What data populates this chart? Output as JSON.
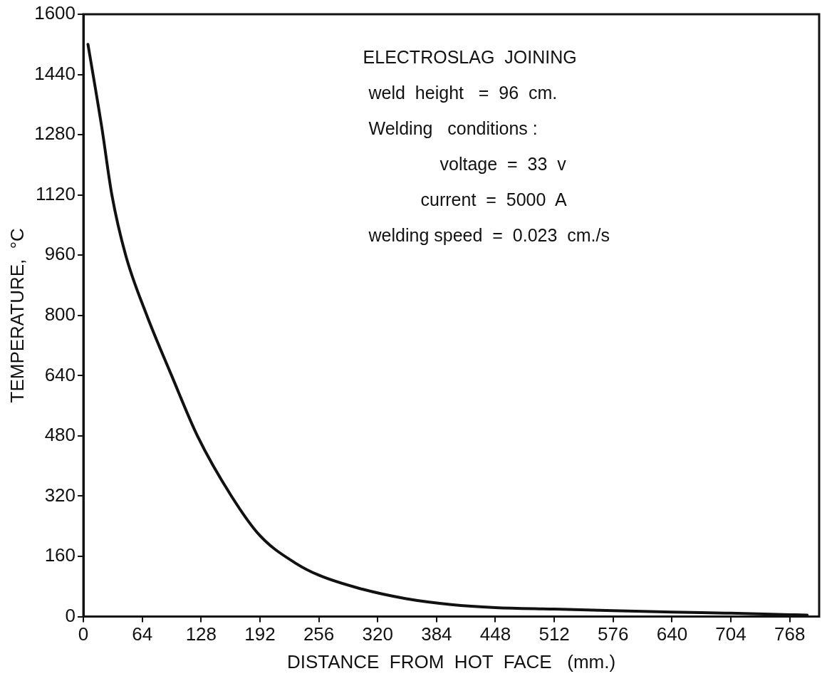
{
  "chart_data": {
    "type": "line",
    "xlabel": "DISTANCE  FROM  HOT  FACE   (mm.)",
    "ylabel": "TEMPERATURE,  °C",
    "annotations": [
      "ELECTROSLAG  JOINING",
      "weld  height   =  96  cm.",
      "Welding   conditions :",
      "voltage  =  33  v",
      "current  =  5000  A",
      "welding speed  =  0.023  cm./s"
    ],
    "xlim": [
      0,
      800
    ],
    "xticks": [
      0,
      64,
      128,
      192,
      256,
      320,
      384,
      448,
      512,
      576,
      640,
      704,
      768
    ],
    "ylim": [
      0,
      1600
    ],
    "yticks": [
      0,
      160,
      320,
      480,
      640,
      800,
      960,
      1120,
      1280,
      1440,
      1600
    ],
    "grid": false,
    "legend": false,
    "marker": "none",
    "line_style": "solid",
    "series": [
      {
        "color": "#111111",
        "x": [
          5,
          20,
          31,
          46,
          69,
          96,
          124,
          161,
          192,
          232,
          256,
          300,
          350,
          400,
          448,
          512,
          576,
          640,
          704,
          768,
          787
        ],
        "values": [
          1520,
          1300,
          1120,
          960,
          800,
          640,
          480,
          320,
          215,
          140,
          110,
          75,
          48,
          32,
          24,
          20,
          16,
          12,
          9,
          5,
          4
        ]
      }
    ]
  }
}
